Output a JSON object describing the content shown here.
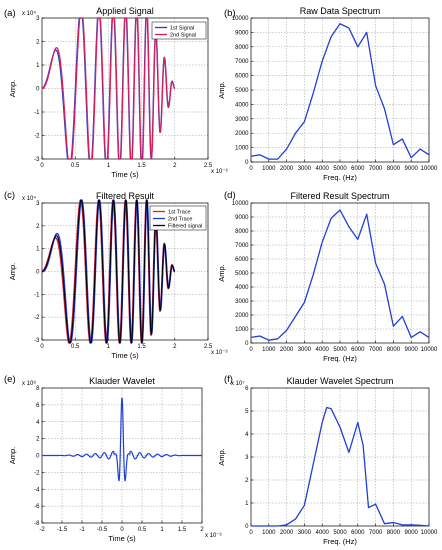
{
  "panels": [
    {
      "id": "a",
      "label": "(a)",
      "title": "Applied Signal",
      "xlabel": "Time (s)",
      "ylabel": "Amp.",
      "xmult": "x 10⁻³",
      "ymult": "x 10⁴",
      "xlim": [
        0,
        2.5
      ],
      "ylim": [
        -3,
        3
      ],
      "xticks": [
        0,
        0.5,
        1,
        1.5,
        2,
        2.5
      ],
      "xticklabels": [
        "0",
        "0.5",
        "1",
        "1.5",
        "2",
        "2.5"
      ],
      "yticks": [
        -3,
        -2,
        -1,
        0,
        1,
        2,
        3
      ],
      "yticklabels": [
        "-3",
        "-2",
        "-1",
        "0",
        "1",
        "2",
        "3"
      ],
      "legend": [
        "1st Signal",
        "2nd Signal"
      ]
    },
    {
      "id": "b",
      "label": "(b)",
      "title": "Raw Data Spectrum",
      "xlabel": "Freq. (Hz)",
      "ylabel": "Amp.",
      "xlim": [
        0,
        10000
      ],
      "ylim": [
        0,
        10000
      ],
      "xticks": [
        0,
        1000,
        2000,
        3000,
        4000,
        5000,
        6000,
        7000,
        8000,
        9000,
        10000
      ],
      "xticklabels": [
        "0",
        "1000",
        "2000",
        "3000",
        "4000",
        "5000",
        "6000",
        "7000",
        "8000",
        "9000",
        "10000"
      ],
      "yticks": [
        0,
        1000,
        2000,
        3000,
        4000,
        5000,
        6000,
        7000,
        8000,
        9000,
        10000
      ],
      "yticklabels": [
        "0",
        "1000",
        "2000",
        "3000",
        "4000",
        "5000",
        "6000",
        "7000",
        "8000",
        "9000",
        "10000"
      ]
    },
    {
      "id": "c",
      "label": "(c)",
      "title": "Filtered Result",
      "xlabel": "Time (s)",
      "ylabel": "Amp.",
      "xmult": "x 10⁻³",
      "ymult": "x 10⁴",
      "xlim": [
        0,
        2.5
      ],
      "ylim": [
        -3,
        3
      ],
      "xticks": [
        0,
        0.5,
        1,
        1.5,
        2,
        2.5
      ],
      "xticklabels": [
        "0",
        "0.5",
        "1",
        "1.5",
        "2",
        "2.5"
      ],
      "yticks": [
        -3,
        -2,
        -1,
        0,
        1,
        2,
        3
      ],
      "yticklabels": [
        "-3",
        "-2",
        "-1",
        "0",
        "1",
        "2",
        "3"
      ],
      "legend": [
        "1st Trace",
        "2nd Trace",
        "Filtered signal"
      ]
    },
    {
      "id": "d",
      "label": "(d)",
      "title": "Filtered Result Spectrum",
      "xlabel": "Freq. (Hz)",
      "ylabel": "Amp.",
      "xlim": [
        0,
        10000
      ],
      "ylim": [
        0,
        10000
      ],
      "xticks": [
        0,
        1000,
        2000,
        3000,
        4000,
        5000,
        6000,
        7000,
        8000,
        9000,
        10000
      ],
      "xticklabels": [
        "0",
        "1000",
        "2000",
        "3000",
        "4000",
        "5000",
        "6000",
        "7000",
        "8000",
        "9000",
        "10000"
      ],
      "yticks": [
        0,
        1000,
        2000,
        3000,
        4000,
        5000,
        6000,
        7000,
        8000,
        9000,
        10000
      ],
      "yticklabels": [
        "0",
        "1000",
        "2000",
        "3000",
        "4000",
        "5000",
        "6000",
        "7000",
        "8000",
        "9000",
        "10000"
      ]
    },
    {
      "id": "e",
      "label": "(e)",
      "title": "Klauder Wavelet",
      "xlabel": "Time (s)",
      "ylabel": "Amp.",
      "xmult": "x 10⁻³",
      "ymult": "x 10⁸",
      "xlim": [
        -2,
        2
      ],
      "ylim": [
        -8,
        8
      ],
      "xticks": [
        -2,
        -1.5,
        -1,
        -0.5,
        0,
        0.5,
        1,
        1.5,
        2
      ],
      "xticklabels": [
        "-2",
        "-1.5",
        "-1",
        "-0.5",
        "0",
        "0.5",
        "1",
        "1.5",
        "2"
      ],
      "yticks": [
        -8,
        -6,
        -4,
        -2,
        0,
        2,
        4,
        6,
        8
      ],
      "yticklabels": [
        "-8",
        "-6",
        "-4",
        "-2",
        "0",
        "2",
        "4",
        "6",
        "8"
      ]
    },
    {
      "id": "f",
      "label": "(f)",
      "title": "Klauder Wavelet Spectrum",
      "xlabel": "Freq. (Hz)",
      "ylabel": "Amp.",
      "ymult": "x 10⁷",
      "xlim": [
        0,
        10000
      ],
      "ylim": [
        0,
        6
      ],
      "xticks": [
        0,
        1000,
        2000,
        3000,
        4000,
        5000,
        6000,
        7000,
        8000,
        9000,
        10000
      ],
      "xticklabels": [
        "0",
        "1000",
        "2000",
        "3000",
        "4000",
        "5000",
        "6000",
        "7000",
        "8000",
        "9000",
        "10000"
      ],
      "yticks": [
        0,
        1,
        2,
        3,
        4,
        5,
        6
      ],
      "yticklabels": [
        "0",
        "1",
        "2",
        "3",
        "4",
        "5",
        "6"
      ]
    }
  ],
  "chart_data": [
    {
      "type": "line",
      "panel": "a",
      "title": "Applied Signal",
      "xlabel": "Time (s)",
      "ylabel": "Amp.",
      "xlim": [
        0,
        2.5
      ],
      "ylim": [
        -3,
        3
      ],
      "x_scale": "x 10^-3",
      "y_scale": "x 10^4",
      "grid": true,
      "legend": "top-right",
      "series": [
        {
          "name": "1st Signal",
          "color": "#1f3fd8",
          "waveform": "linear chirp, 0 to 2 ms, amplitude 3, clipped at ±3 in the middle"
        },
        {
          "name": "2nd Signal",
          "color": "#d81f5a",
          "waveform": "linear chirp, 0 to 2 ms, amplitude 3, clipped at ±3 in the middle"
        }
      ]
    },
    {
      "type": "line",
      "panel": "b",
      "title": "Raw Data Spectrum",
      "xlabel": "Freq. (Hz)",
      "ylabel": "Amp.",
      "xlim": [
        0,
        10000
      ],
      "ylim": [
        0,
        10000
      ],
      "grid": true,
      "series": [
        {
          "color": "#1f3fd8",
          "x": [
            0,
            500,
            1000,
            1500,
            2000,
            2500,
            3000,
            3500,
            4000,
            4500,
            5000,
            5500,
            6000,
            6500,
            7000,
            7500,
            8000,
            8500,
            9000,
            9500,
            10000
          ],
          "y": [
            400,
            500,
            200,
            200,
            900,
            2000,
            2800,
            4800,
            7000,
            8700,
            9600,
            9300,
            8000,
            9000,
            5300,
            3700,
            1200,
            1600,
            300,
            900,
            500
          ]
        }
      ]
    },
    {
      "type": "line",
      "panel": "c",
      "title": "Filtered Result",
      "xlabel": "Time (s)",
      "ylabel": "Amp.",
      "xlim": [
        0,
        2.5
      ],
      "ylim": [
        -3,
        3
      ],
      "x_scale": "x 10^-3",
      "y_scale": "x 10^4",
      "grid": true,
      "legend": "top-right",
      "series": [
        {
          "name": "1st Trace",
          "color": "#d81f3a",
          "waveform": "chirp trace, 0 to 2 ms"
        },
        {
          "name": "2nd Trace",
          "color": "#1f3fd8",
          "waveform": "chirp trace, 0 to 2 ms"
        },
        {
          "name": "Filtered signal",
          "color": "#000000",
          "waveform": "filtered chirp, 0 to 2 ms"
        }
      ]
    },
    {
      "type": "line",
      "panel": "d",
      "title": "Filtered Result Spectrum",
      "xlabel": "Freq. (Hz)",
      "ylabel": "Amp.",
      "xlim": [
        0,
        10000
      ],
      "ylim": [
        0,
        10000
      ],
      "grid": true,
      "series": [
        {
          "color": "#1f3fd8",
          "x": [
            0,
            500,
            1000,
            1500,
            2000,
            2500,
            3000,
            3500,
            4000,
            4500,
            5000,
            5500,
            6000,
            6500,
            7000,
            7500,
            8000,
            8500,
            9000,
            9500,
            10000
          ],
          "y": [
            400,
            500,
            200,
            300,
            900,
            1900,
            2900,
            4900,
            7200,
            8900,
            9500,
            8300,
            7400,
            9200,
            5700,
            4200,
            1200,
            1900,
            400,
            800,
            400
          ]
        }
      ]
    },
    {
      "type": "line",
      "panel": "e",
      "title": "Klauder Wavelet",
      "xlabel": "Time (s)",
      "ylabel": "Amp.",
      "xlim": [
        -2,
        2
      ],
      "ylim": [
        -8,
        8
      ],
      "x_scale": "x 10^-3",
      "y_scale": "x 10^8",
      "grid": true,
      "series": [
        {
          "color": "#1f3fd8",
          "waveform": "symmetric zero-phase wavelet, peak 6 at 0, side lobes about -5 near ±0.1"
        }
      ]
    },
    {
      "type": "line",
      "panel": "f",
      "title": "Klauder Wavelet Spectrum",
      "xlabel": "Freq. (Hz)",
      "ylabel": "Amp.",
      "xlim": [
        0,
        10000
      ],
      "ylim": [
        0,
        6
      ],
      "y_scale": "x 10^7",
      "grid": true,
      "series": [
        {
          "color": "#1f3fd8",
          "x": [
            0,
            500,
            1000,
            1500,
            2000,
            2500,
            3000,
            3500,
            4000,
            4250,
            4500,
            5000,
            5500,
            6000,
            6300,
            6600,
            7000,
            7500,
            8000,
            8500,
            9000,
            9500,
            10000
          ],
          "y": [
            0,
            0,
            0,
            0,
            0.05,
            0.3,
            0.9,
            2.7,
            4.5,
            5.15,
            5.1,
            4.3,
            3.2,
            4.5,
            3.5,
            0.8,
            0.95,
            0.1,
            0.15,
            0.05,
            0.05,
            0.03,
            0
          ]
        }
      ]
    }
  ]
}
